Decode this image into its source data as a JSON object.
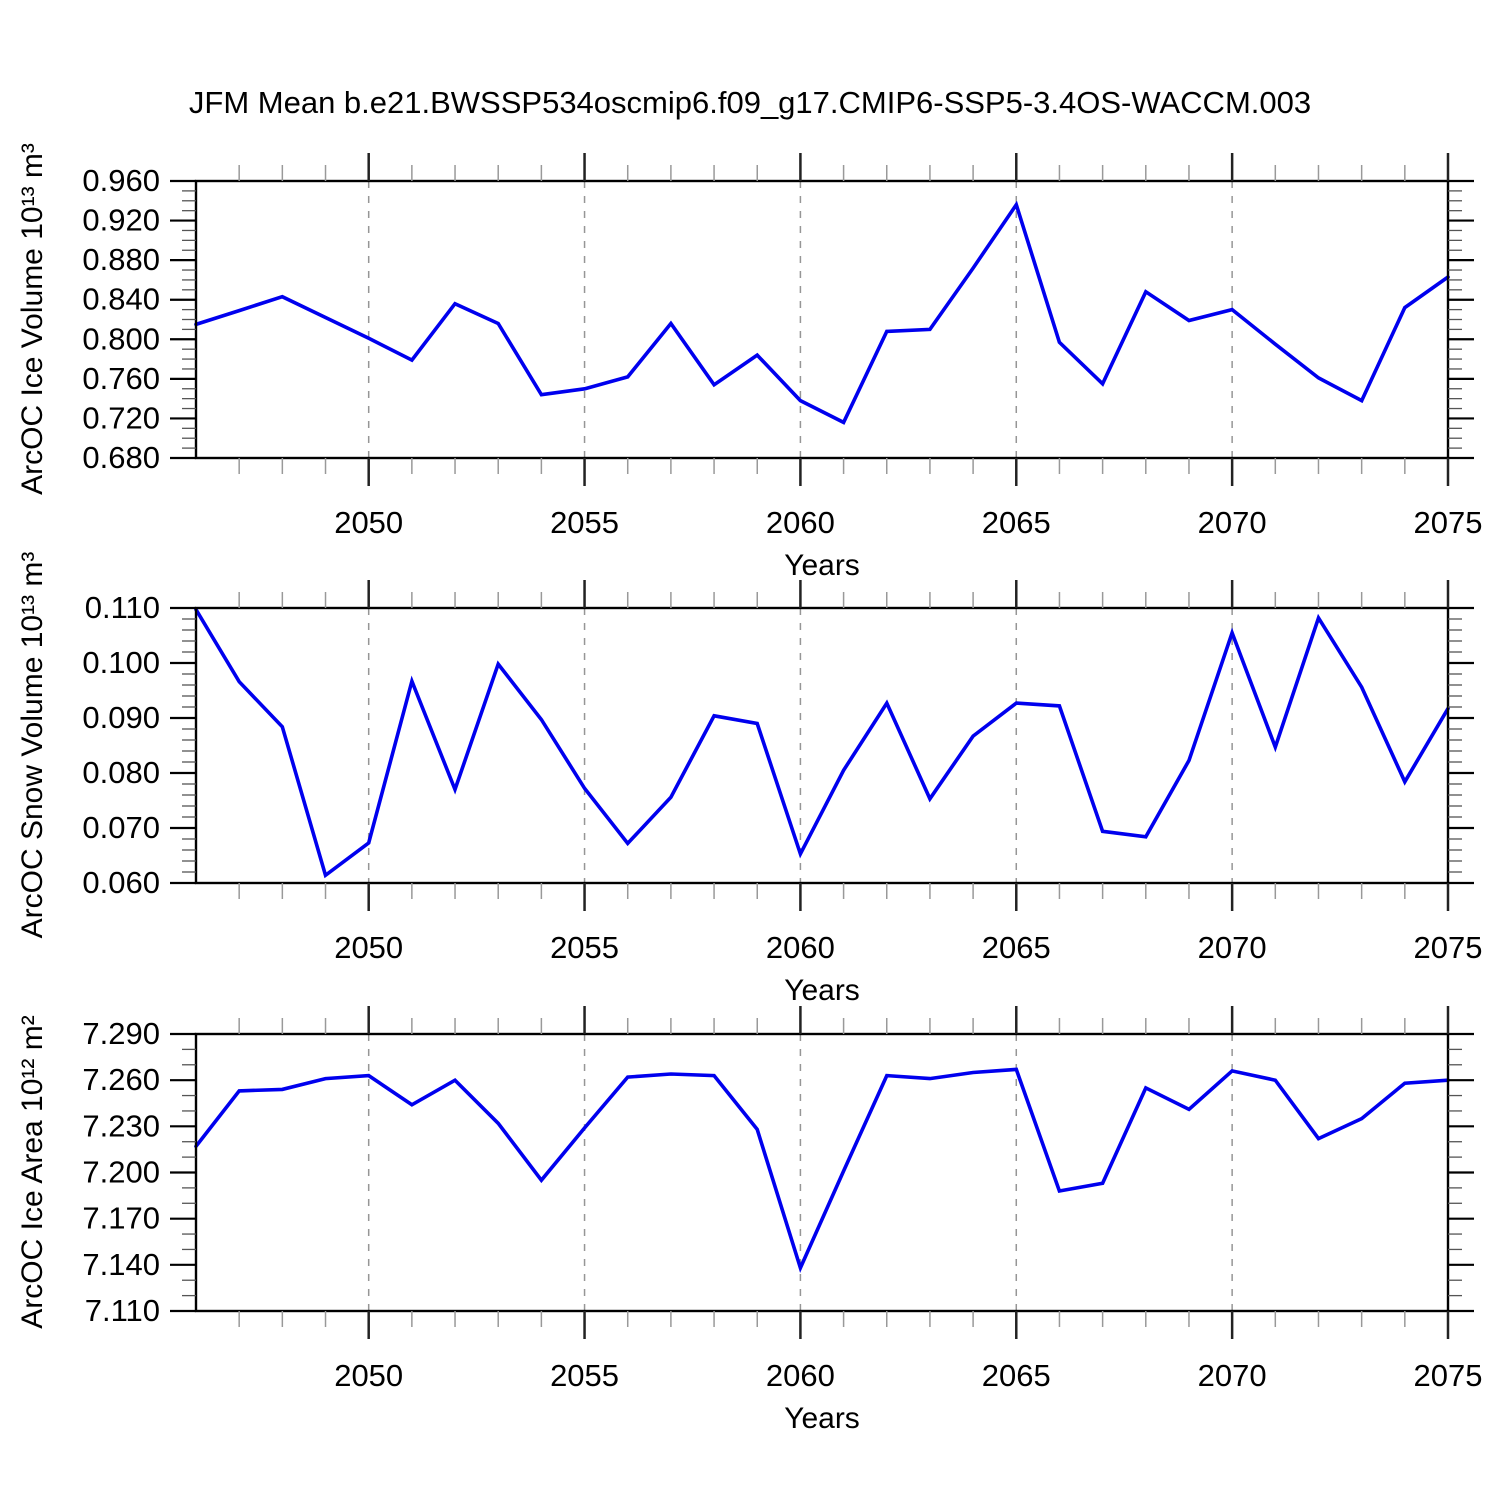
{
  "title": "JFM Mean b.e21.BWSSP534oscmip6.f09_g17.CMIP6-SSP5-3.4OS-WACCM.003",
  "x_axis": {
    "label": "Years",
    "range": [
      2046,
      2075
    ],
    "major_ticks": [
      2050,
      2055,
      2060,
      2065,
      2070,
      2075
    ],
    "minor_tick_step": 1,
    "gridlines": [
      2050,
      2055,
      2060,
      2065,
      2070
    ]
  },
  "style": {
    "line_color": "#0000EE",
    "gridline_color": "#969696",
    "axis_color": "#000000",
    "x_minor_tick_color": "#999999",
    "y_minor_tick_color": "#555555"
  },
  "chart_data": [
    {
      "type": "line",
      "name": "arcoc-ice-volume",
      "ylabel": "ArcOC Ice Volume 10¹³ m³",
      "xlabel": "Years",
      "ylim": [
        0.68,
        0.96
      ],
      "ytick_step": 0.04,
      "minor_ytick_step": 0.01,
      "grid": "x-dashed",
      "legend": "none",
      "x": [
        2046,
        2047,
        2048,
        2049,
        2050,
        2051,
        2052,
        2053,
        2054,
        2055,
        2056,
        2057,
        2058,
        2059,
        2060,
        2061,
        2062,
        2063,
        2064,
        2065,
        2066,
        2067,
        2068,
        2069,
        2070,
        2071,
        2072,
        2073,
        2074,
        2075
      ],
      "values": [
        0.815,
        0.829,
        0.843,
        0.822,
        0.801,
        0.779,
        0.836,
        0.816,
        0.744,
        0.75,
        0.762,
        0.816,
        0.754,
        0.784,
        0.738,
        0.716,
        0.808,
        0.81,
        0.872,
        0.936,
        0.797,
        0.755,
        0.848,
        0.819,
        0.83,
        0.795,
        0.761,
        0.738,
        0.832,
        0.863
      ]
    },
    {
      "type": "line",
      "name": "arcoc-snow-volume",
      "ylabel": "ArcOC Snow Volume 10¹³ m³",
      "xlabel": "Years",
      "ylim": [
        0.06,
        0.11
      ],
      "ytick_step": 0.01,
      "minor_ytick_step": 0.002,
      "grid": "x-dashed",
      "legend": "none",
      "x": [
        2046,
        2047,
        2048,
        2049,
        2050,
        2051,
        2052,
        2053,
        2054,
        2055,
        2056,
        2057,
        2058,
        2059,
        2060,
        2061,
        2062,
        2063,
        2064,
        2065,
        2066,
        2067,
        2068,
        2069,
        2070,
        2071,
        2072,
        2073,
        2074,
        2075
      ],
      "values": [
        0.1097,
        0.0966,
        0.0884,
        0.0614,
        0.0673,
        0.0967,
        0.077,
        0.0998,
        0.0897,
        0.0772,
        0.0672,
        0.0756,
        0.0904,
        0.089,
        0.0653,
        0.0805,
        0.0927,
        0.0753,
        0.0867,
        0.0927,
        0.0922,
        0.0694,
        0.0684,
        0.0823,
        0.1055,
        0.0847,
        0.1082,
        0.0956,
        0.0784,
        0.0917
      ]
    },
    {
      "type": "line",
      "name": "arcoc-ice-area",
      "ylabel": "ArcOC Ice Area 10¹² m²",
      "xlabel": "Years",
      "ylim": [
        7.11,
        7.29
      ],
      "ytick_step": 0.03,
      "minor_ytick_step": 0.01,
      "grid": "x-dashed",
      "legend": "none",
      "x": [
        2046,
        2047,
        2048,
        2049,
        2050,
        2051,
        2052,
        2053,
        2054,
        2055,
        2056,
        2057,
        2058,
        2059,
        2060,
        2061,
        2062,
        2063,
        2064,
        2065,
        2066,
        2067,
        2068,
        2069,
        2070,
        2071,
        2072,
        2073,
        2074,
        2075
      ],
      "values": [
        7.217,
        7.253,
        7.254,
        7.261,
        7.263,
        7.244,
        7.26,
        7.232,
        7.195,
        7.229,
        7.262,
        7.264,
        7.263,
        7.228,
        7.138,
        7.201,
        7.263,
        7.261,
        7.265,
        7.267,
        7.188,
        7.193,
        7.255,
        7.241,
        7.266,
        7.26,
        7.222,
        7.235,
        7.258,
        7.26
      ]
    }
  ]
}
